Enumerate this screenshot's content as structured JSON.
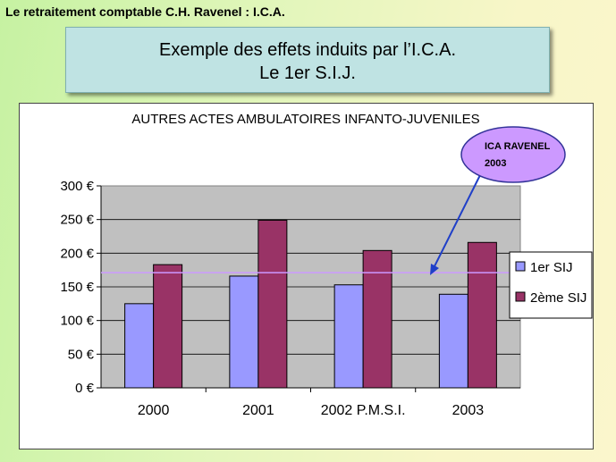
{
  "header": {
    "text": "Le retraitement comptable C.H. Ravenel : I.C.A."
  },
  "title_box": {
    "line1": "Exemple des effets induits par l’I.C.A.",
    "line2": "Le 1er S.I.J."
  },
  "chart_data": {
    "type": "bar",
    "title": "AUTRES ACTES AMBULATOIRES INFANTO-JUVENILES",
    "categories": [
      "2000",
      "2001",
      "2002 P.M.S.I.",
      "2003"
    ],
    "series": [
      {
        "name": "1er SIJ",
        "values": [
          125,
          166,
          153,
          139
        ],
        "color": "#9999ff"
      },
      {
        "name": "2ème SIJ",
        "values": [
          183,
          249,
          204,
          216
        ],
        "color": "#993366"
      }
    ],
    "ylim": [
      0,
      300
    ],
    "yticks": [
      0,
      50,
      100,
      150,
      200,
      250,
      300
    ],
    "ytick_labels": [
      "0 €",
      "50 €",
      "100 €",
      "150 €",
      "200 €",
      "250 €",
      "300 €"
    ],
    "grid": true,
    "plot_background": "#c0c0c0",
    "legend_position": "right",
    "reference_line": {
      "value": 171,
      "color": "#cc99ff"
    },
    "annotation": {
      "line1": "ICA RAVENEL",
      "line2": "2003",
      "fill": "#cc99ff",
      "arrow_color": "#1f3fc8"
    }
  }
}
